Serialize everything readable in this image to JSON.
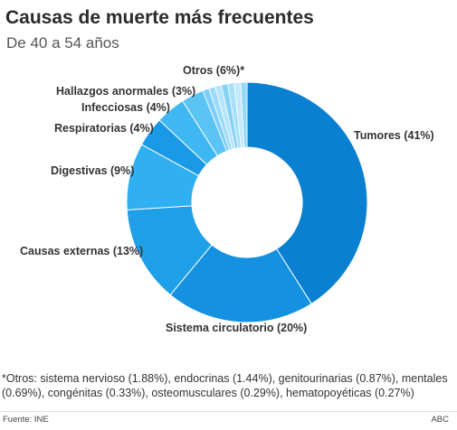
{
  "header": {
    "title": "Causas de muerte más frecuentes",
    "subtitle": "De 40 a 54 años"
  },
  "chart_data": {
    "type": "pie",
    "donut": true,
    "title": "Causas de muerte más frecuentes",
    "subtitle": "De 40 a 54 años",
    "slices": [
      {
        "label": "Tumores (41%)",
        "value": 41,
        "color": "#0a80d0"
      },
      {
        "label": "Sistema circulatorio (20%)",
        "value": 20,
        "color": "#1491e0"
      },
      {
        "label": "Causas externas (13%)",
        "value": 13,
        "color": "#1e9fe8"
      },
      {
        "label": "Digestivas (9%)",
        "value": 9,
        "color": "#30b0f2"
      },
      {
        "label": "Respiratorias (4%)",
        "value": 4,
        "color": "#1a9ae6"
      },
      {
        "label": "Infecciosas (4%)",
        "value": 4,
        "color": "#3fb7f2"
      },
      {
        "label": "Hallazgos anormales (3%)",
        "value": 3,
        "color": "#5cc4f5"
      },
      {
        "label": "Otros (6%)*",
        "value": 6,
        "color": "#8fd6f8"
      }
    ],
    "otros_stripes": [
      "#7ecff7",
      "#9ddcf9",
      "#b5e5fa",
      "#86d2f7",
      "#a7e0f9",
      "#c2eafb",
      "#95d8f8"
    ]
  },
  "note": "*Otros: sistema nervioso (1.88%), endocrinas (1.44%), genitourinarias (0.87%), mentales (0.69%), congénitas (0.33%), osteomusculares (0.29%), hematopoyéticas (0.27%)",
  "footer": {
    "source": "Fuente: INE",
    "brand": "ABC"
  }
}
